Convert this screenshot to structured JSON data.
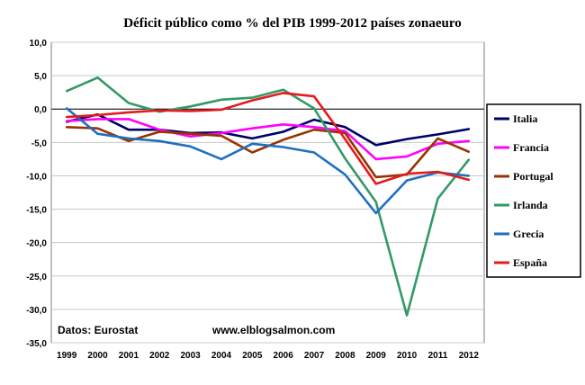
{
  "chart_data": {
    "type": "line",
    "title": "Déficit público como % del PIB 1999-2012 países zonaeuro",
    "xlabel": "",
    "ylabel": "",
    "x": [
      "1999",
      "2000",
      "2001",
      "2002",
      "2003",
      "2004",
      "2005",
      "2006",
      "2007",
      "2008",
      "2009",
      "2010",
      "2011",
      "2012"
    ],
    "ylim": [
      -35,
      10
    ],
    "yticks": [
      10,
      5,
      0,
      -5,
      -10,
      -15,
      -20,
      -25,
      -30,
      -35
    ],
    "ytick_labels": [
      "10,0",
      "5,0",
      "0,0",
      "-5,0",
      "-10,0",
      "-15,0",
      "-20,0",
      "-25,0",
      "-30,0",
      "-35,0"
    ],
    "grid": "horizontal",
    "legend_position": "right",
    "series": [
      {
        "name": "Italia",
        "color": "#000066",
        "values": [
          -1.9,
          -0.8,
          -3.1,
          -3.1,
          -3.6,
          -3.5,
          -4.4,
          -3.4,
          -1.6,
          -2.7,
          -5.4,
          -4.5,
          -3.8,
          -3.0
        ]
      },
      {
        "name": "Francia",
        "color": "#ff00ff",
        "values": [
          -1.8,
          -1.5,
          -1.5,
          -3.1,
          -4.1,
          -3.6,
          -2.9,
          -2.3,
          -2.7,
          -3.3,
          -7.5,
          -7.1,
          -5.2,
          -4.8
        ]
      },
      {
        "name": "Portugal",
        "color": "#993300",
        "values": [
          -2.7,
          -2.9,
          -4.8,
          -3.4,
          -3.7,
          -4.0,
          -6.5,
          -4.6,
          -3.1,
          -3.6,
          -10.2,
          -9.8,
          -4.4,
          -6.4
        ]
      },
      {
        "name": "Irlanda",
        "color": "#339966",
        "values": [
          2.7,
          4.7,
          0.9,
          -0.4,
          0.4,
          1.4,
          1.7,
          2.9,
          0.1,
          -7.4,
          -13.9,
          -30.9,
          -13.4,
          -7.6
        ]
      },
      {
        "name": "Grecia",
        "color": "#1f6fc0",
        "values": [
          0.1,
          -3.7,
          -4.4,
          -4.8,
          -5.6,
          -7.5,
          -5.2,
          -5.7,
          -6.5,
          -9.8,
          -15.6,
          -10.7,
          -9.5,
          -10.0
        ]
      },
      {
        "name": "España",
        "color": "#e41a1c",
        "values": [
          -1.2,
          -0.9,
          -0.5,
          -0.2,
          -0.3,
          -0.1,
          1.3,
          2.4,
          1.9,
          -4.5,
          -11.2,
          -9.7,
          -9.4,
          -10.6
        ]
      }
    ],
    "annotations": [
      "Datos: Eurostat",
      "www.elblogsalmon.com"
    ]
  }
}
